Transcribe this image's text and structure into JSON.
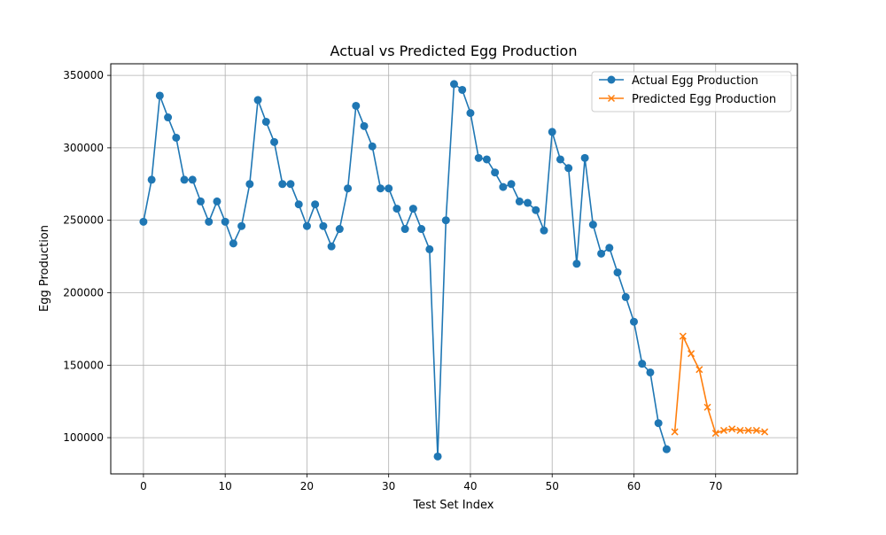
{
  "chart_data": {
    "type": "line",
    "title": "Actual vs Predicted Egg Production",
    "xlabel": "Test Set Index",
    "ylabel": "Egg Production",
    "xlim": [
      -4,
      80
    ],
    "ylim": [
      75000,
      358000
    ],
    "xticks": [
      0,
      10,
      20,
      30,
      40,
      50,
      60,
      70
    ],
    "xtick_labels": [
      "0",
      "10",
      "20",
      "30",
      "40",
      "50",
      "60",
      "70"
    ],
    "yticks": [
      100000,
      150000,
      200000,
      250000,
      300000,
      350000
    ],
    "ytick_labels": [
      "100000",
      "150000",
      "200000",
      "250000",
      "300000",
      "350000"
    ],
    "grid": true,
    "legend_position": "top-right",
    "series": [
      {
        "name": "Actual Egg Production",
        "color": "#1f77b4",
        "marker": "circle",
        "x": [
          0,
          1,
          2,
          3,
          4,
          5,
          6,
          7,
          8,
          9,
          10,
          11,
          12,
          13,
          14,
          15,
          16,
          17,
          18,
          19,
          20,
          21,
          22,
          23,
          24,
          25,
          26,
          27,
          28,
          29,
          30,
          31,
          32,
          33,
          34,
          35,
          36,
          37,
          38,
          39,
          40,
          41,
          42,
          43,
          44,
          45,
          46,
          47,
          48,
          49,
          50,
          51,
          52,
          53,
          54,
          55,
          56,
          57,
          58,
          59,
          60,
          61,
          62,
          63,
          64
        ],
        "values": [
          249000,
          278000,
          336000,
          321000,
          307000,
          278000,
          278000,
          263000,
          249000,
          263000,
          249000,
          234000,
          246000,
          275000,
          333000,
          318000,
          304000,
          275000,
          275000,
          261000,
          246000,
          261000,
          246000,
          232000,
          244000,
          272000,
          329000,
          315000,
          301000,
          272000,
          272000,
          258000,
          244000,
          258000,
          244000,
          230000,
          87000,
          250000,
          344000,
          340000,
          324000,
          293000,
          292000,
          283000,
          273000,
          275000,
          263000,
          262000,
          257000,
          243000,
          311000,
          292000,
          286000,
          220000,
          293000,
          247000,
          227000,
          231000,
          214000,
          197000,
          180000,
          151000,
          145000,
          110000,
          92000
        ]
      },
      {
        "name": "Predicted Egg Production",
        "color": "#ff7f0e",
        "marker": "x",
        "x": [
          65,
          66,
          67,
          68,
          69,
          70,
          71,
          72,
          73,
          74,
          75,
          76
        ],
        "values": [
          104000,
          170000,
          158000,
          147000,
          121000,
          103000,
          105000,
          106000,
          105000,
          105000,
          105000,
          104000
        ]
      }
    ]
  }
}
